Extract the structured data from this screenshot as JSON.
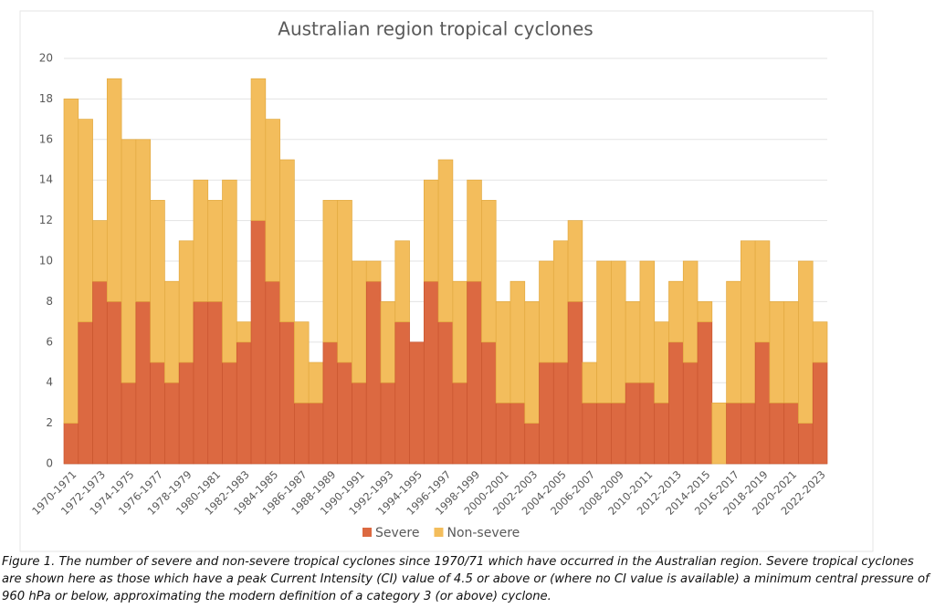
{
  "chart_data": {
    "type": "stacked_bar",
    "title": "Australian region tropical cyclones",
    "categories": [
      "1970-1971",
      null,
      "1972-1973",
      null,
      "1974-1975",
      null,
      "1976-1977",
      null,
      "1978-1979",
      null,
      "1980-1981",
      null,
      "1982-1983",
      null,
      "1984-1985",
      null,
      "1986-1987",
      null,
      "1988-1989",
      null,
      "1990-1991",
      null,
      "1992-1993",
      null,
      "1994-1995",
      null,
      "1996-1997",
      null,
      "1998-1999",
      null,
      "2000-2001",
      null,
      "2002-2003",
      null,
      "2004-2005",
      null,
      "2006-2007",
      null,
      "2008-2009",
      null,
      "2010-2011",
      null,
      "2012-2013",
      null,
      "2014-2015",
      null,
      "2016-2017",
      null,
      "2018-2019",
      null,
      "2020-2021",
      null,
      "2022-2023"
    ],
    "series": [
      {
        "name": "Severe",
        "color": "#dc6941",
        "values": [
          2,
          7,
          9,
          8,
          4,
          8,
          5,
          4,
          5,
          8,
          8,
          5,
          6,
          12,
          9,
          7,
          3,
          3,
          6,
          5,
          4,
          9,
          4,
          7,
          6,
          9,
          7,
          4,
          9,
          6,
          3,
          3,
          2,
          5,
          5,
          8,
          3,
          3,
          3,
          4,
          4,
          3,
          6,
          5,
          7,
          0,
          3,
          3,
          6,
          3,
          3,
          2,
          5
        ]
      },
      {
        "name": "Non-severe",
        "color": "#f3bd5c",
        "values": [
          16,
          10,
          3,
          11,
          12,
          8,
          8,
          5,
          6,
          6,
          5,
          9,
          1,
          7,
          8,
          8,
          4,
          2,
          7,
          8,
          6,
          1,
          4,
          4,
          0,
          5,
          8,
          5,
          5,
          7,
          5,
          6,
          6,
          5,
          6,
          4,
          2,
          7,
          7,
          4,
          6,
          4,
          3,
          5,
          1,
          3,
          6,
          8,
          5,
          5,
          5,
          8,
          2
        ]
      }
    ],
    "ylim": [
      0,
      20
    ],
    "yticks": [
      0,
      2,
      4,
      6,
      8,
      10,
      12,
      14,
      16,
      18,
      20
    ],
    "grid": true,
    "legend": "bottom"
  },
  "caption": "Figure 1. The number of severe and non-severe tropical cyclones since 1970/71 which have occurred in the Australian region. Severe tropical cyclones are shown here as those which have a peak Current Intensity (CI) value of 4.5 or above or (where no CI value is available) a minimum central pressure of 960 hPa or below, approximating the modern definition of a category 3 (or above) cyclone."
}
